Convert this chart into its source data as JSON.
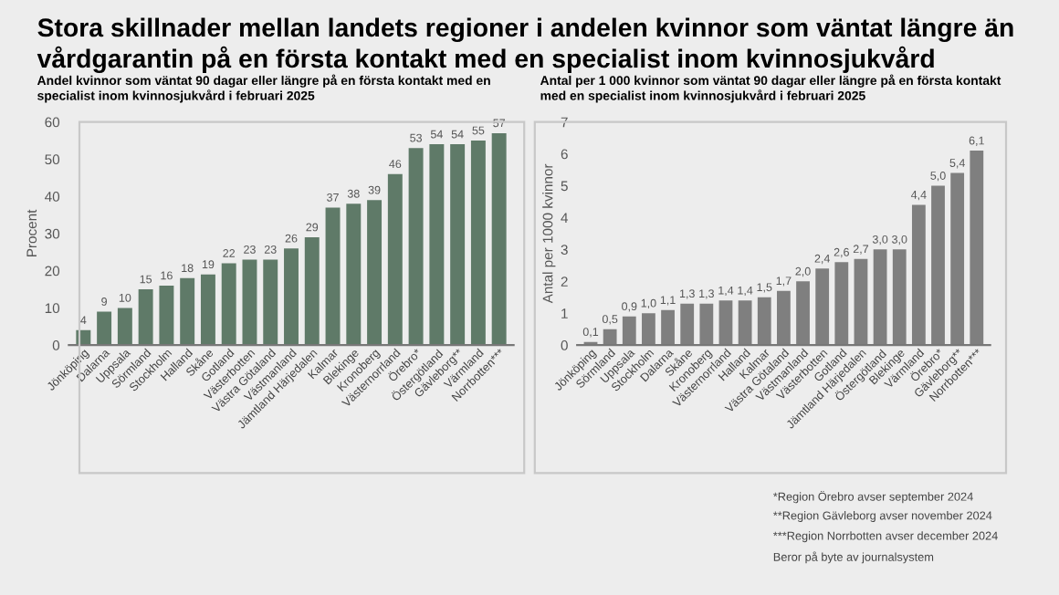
{
  "chart_data": [
    {
      "type": "bar",
      "title": "Stora skillnader mellan landets regioner i andelen kvinnor som väntat längre än vårdgarantin på en första kontakt med en specialist inom kvinnosjukvård",
      "subtitle": "Andel kvinnor som väntat 90 dagar eller längre på en första kontakt med en specialist inom kvinnosjukvård i februari 2025",
      "ylabel": "Procent",
      "categories": [
        "Jönköping",
        "Dalarna",
        "Uppsala",
        "Sörmland",
        "Stockholm",
        "Halland",
        "Skåne",
        "Gotland",
        "Västerbotten",
        "Västra Götaland",
        "Västmanland",
        "Jämtland Härjedalen",
        "Kalmar",
        "Blekinge",
        "Kronoberg",
        "Västernorrland",
        "Örebro*",
        "Östergötland",
        "Gävleborg**",
        "Värmland",
        "Norrbotten***"
      ],
      "values": [
        4,
        9,
        10,
        15,
        16,
        18,
        19,
        22,
        23,
        23,
        26,
        29,
        37,
        38,
        39,
        46,
        53,
        54,
        54,
        55,
        57
      ],
      "color": "#5f7a68",
      "ylim": [
        0,
        60
      ],
      "yticks": [
        0,
        10,
        20,
        30,
        40,
        50,
        60
      ],
      "data_labels": true,
      "grid": false,
      "legend": false
    },
    {
      "type": "bar",
      "subtitle": "Antal per 1 000 kvinnor som väntat 90 dagar eller längre på en första kontakt med en specialist inom kvinnosjukvård i februari 2025",
      "ylabel": "Antal per 1000 kvinnor",
      "categories": [
        "Jönköping",
        "Sörmland",
        "Uppsala",
        "Stockholm",
        "Dalarna",
        "Skåne",
        "Kronoberg",
        "Västernorrland",
        "Halland",
        "Kalmar",
        "Västra Götaland",
        "Västmanland",
        "Västerbotten",
        "Gotland",
        "Jämtland Härjedalen",
        "Östergötland",
        "Blekinge",
        "Värmland",
        "Örebro*",
        "Gävleborg**",
        "Norrbotten***"
      ],
      "values": [
        0.1,
        0.5,
        0.9,
        1.0,
        1.1,
        1.3,
        1.3,
        1.4,
        1.4,
        1.5,
        1.7,
        2.0,
        2.4,
        2.6,
        2.7,
        3.0,
        3.0,
        4.4,
        5.0,
        5.4,
        6.1
      ],
      "value_labels": [
        "0,1",
        "0,5",
        "0,9",
        "1,0",
        "1,1",
        "1,3",
        "1,3",
        "1,4",
        "1,4",
        "1,5",
        "1,7",
        "2,0",
        "2,4",
        "2,6",
        "2,7",
        "3,0",
        "3,0",
        "4,4",
        "5,0",
        "5,4",
        "6,1"
      ],
      "color": "#7f7f7f",
      "ylim": [
        0,
        7
      ],
      "yticks": [
        0,
        1,
        2,
        3,
        4,
        5,
        6,
        7
      ],
      "grid": false,
      "legend": false,
      "annotations": [
        "*Region Örebro avser september 2024",
        "**Region Gävleborg avser november 2024",
        "***Region Norrbotten avser december 2024",
        "Beror på byte av journalsystem"
      ]
    }
  ]
}
